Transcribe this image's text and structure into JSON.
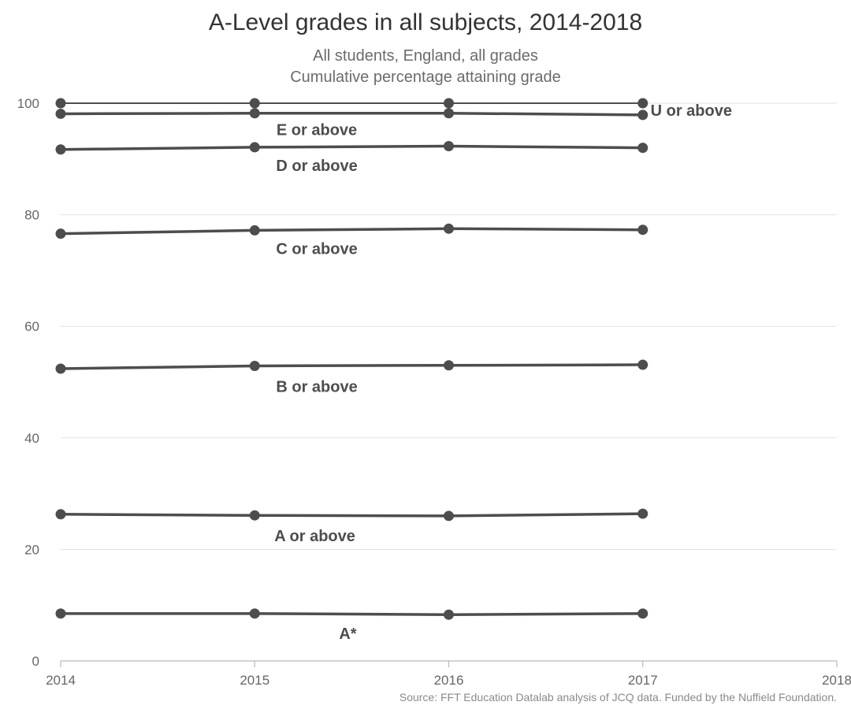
{
  "header": {
    "title": "A-Level grades in all subjects, 2014-2018",
    "subtitle_line1": "All students, England, all grades",
    "subtitle_line2": "Cumulative percentage attaining grade"
  },
  "footer": {
    "source": "Source: FFT Education Datalab analysis of JCQ data. Funded by the Nuffield Foundation."
  },
  "colors": {
    "line": "#4d4d4d",
    "grid": "#e2e2e2",
    "axis": "#bbbbbb",
    "tick_text": "#666666",
    "label_text": "#4d4d4d"
  },
  "chart_data": {
    "type": "line",
    "title": "A-Level grades in all subjects, 2014-2018",
    "subtitle": "All students, England, all grades / Cumulative percentage attaining grade",
    "xlabel": "",
    "ylabel": "",
    "xlim": [
      2014,
      2018
    ],
    "ylim": [
      0,
      100
    ],
    "xticks": [
      "2014",
      "2015",
      "2016",
      "2017",
      "2018"
    ],
    "yticks": [
      "0",
      "20",
      "40",
      "60",
      "80",
      "100"
    ],
    "grid": true,
    "x": [
      2014,
      2015,
      2016,
      2017
    ],
    "series": [
      {
        "name": "U or above",
        "values": [
          100,
          100,
          100,
          100
        ]
      },
      {
        "name": "E or above",
        "values": [
          98.1,
          98.2,
          98.2,
          97.9
        ]
      },
      {
        "name": "D or above",
        "values": [
          91.7,
          92.1,
          92.3,
          92.0
        ]
      },
      {
        "name": "C or above",
        "values": [
          76.6,
          77.2,
          77.5,
          77.3
        ]
      },
      {
        "name": "B or above",
        "values": [
          52.4,
          52.9,
          53.0,
          53.1
        ]
      },
      {
        "name": "A or above",
        "values": [
          26.3,
          26.1,
          26.0,
          26.4
        ]
      },
      {
        "name": "A*",
        "values": [
          8.5,
          8.5,
          8.3,
          8.5
        ]
      }
    ]
  }
}
